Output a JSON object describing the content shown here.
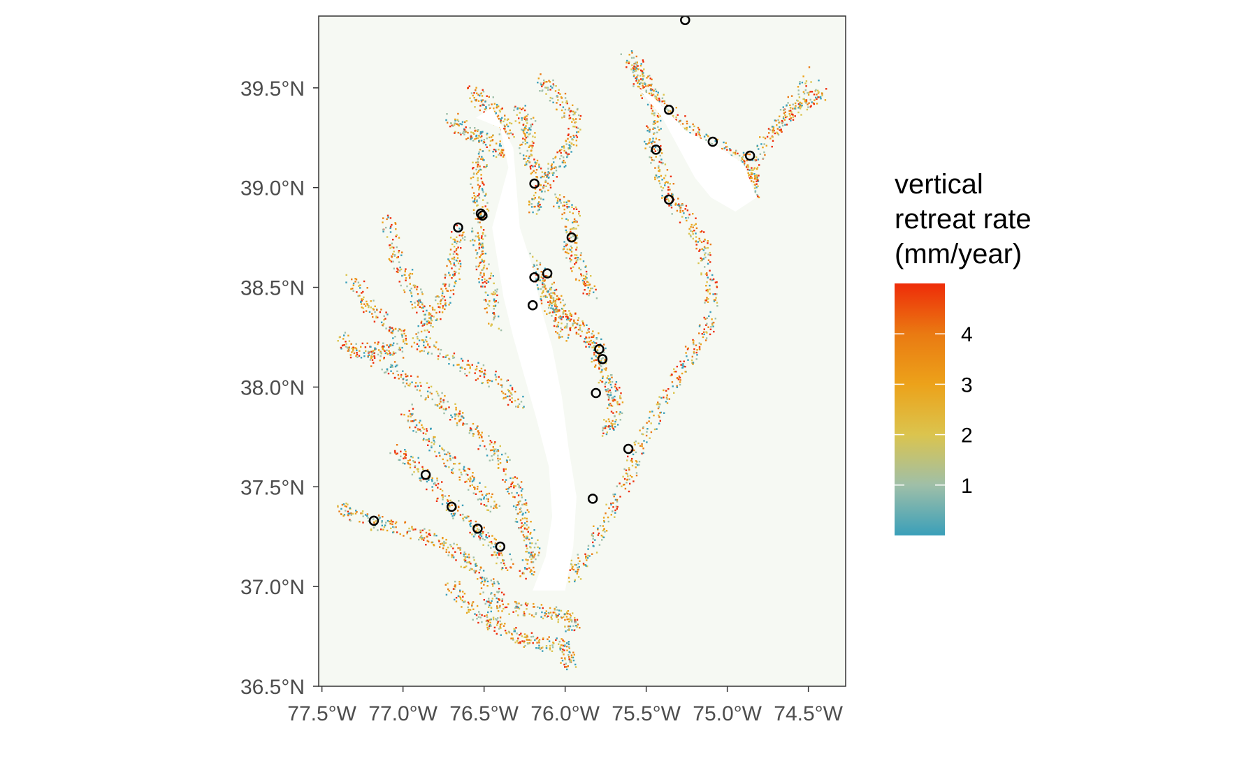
{
  "map": {
    "x_axis": {
      "tick_labels": [
        "77.5°W",
        "77.0°W",
        "76.5°W",
        "76.0°W",
        "75.5°W",
        "75.0°W",
        "74.5°W"
      ],
      "tick_values": [
        -77.5,
        -77.0,
        -76.5,
        -76.0,
        -75.5,
        -75.0,
        -74.5
      ],
      "range": [
        -77.52,
        -74.27
      ]
    },
    "y_axis": {
      "tick_labels": [
        "36.5°N",
        "37.0°N",
        "37.5°N",
        "38.0°N",
        "38.5°N",
        "39.0°N",
        "39.5°N"
      ],
      "tick_values": [
        36.5,
        37.0,
        37.5,
        38.0,
        38.5,
        39.0,
        39.5
      ],
      "range": [
        36.5,
        39.86
      ]
    },
    "panel_background": "#f6f9f3",
    "station_markers": [
      {
        "lon": -75.26,
        "lat": 39.84
      },
      {
        "lon": -75.36,
        "lat": 39.39
      },
      {
        "lon": -75.44,
        "lat": 39.19
      },
      {
        "lon": -75.09,
        "lat": 39.23
      },
      {
        "lon": -74.86,
        "lat": 39.16
      },
      {
        "lon": -75.36,
        "lat": 38.94
      },
      {
        "lon": -76.19,
        "lat": 39.02
      },
      {
        "lon": -76.52,
        "lat": 38.87
      },
      {
        "lon": -76.51,
        "lat": 38.86
      },
      {
        "lon": -76.66,
        "lat": 38.8
      },
      {
        "lon": -75.96,
        "lat": 38.75
      },
      {
        "lon": -76.11,
        "lat": 38.57
      },
      {
        "lon": -76.19,
        "lat": 38.55
      },
      {
        "lon": -76.2,
        "lat": 38.41
      },
      {
        "lon": -75.79,
        "lat": 38.19
      },
      {
        "lon": -75.77,
        "lat": 38.14
      },
      {
        "lon": -75.81,
        "lat": 37.97
      },
      {
        "lon": -75.61,
        "lat": 37.69
      },
      {
        "lon": -76.86,
        "lat": 37.56
      },
      {
        "lon": -75.83,
        "lat": 37.44
      },
      {
        "lon": -76.7,
        "lat": 37.4
      },
      {
        "lon": -76.54,
        "lat": 37.29
      },
      {
        "lon": -76.4,
        "lat": 37.2
      },
      {
        "lon": -77.18,
        "lat": 37.33
      }
    ],
    "marsh_segments": [
      [
        [
          -75.62,
          39.67
        ],
        [
          -75.55,
          39.6
        ],
        [
          -75.5,
          39.5
        ],
        [
          -75.42,
          39.4
        ],
        [
          -75.48,
          39.25
        ],
        [
          -75.42,
          39.1
        ],
        [
          -75.36,
          38.95
        ],
        [
          -75.25,
          38.85
        ],
        [
          -75.15,
          38.7
        ],
        [
          -75.1,
          38.5
        ],
        [
          -75.12,
          38.3
        ],
        [
          -75.25,
          38.15
        ],
        [
          -75.38,
          37.95
        ],
        [
          -75.52,
          37.75
        ],
        [
          -75.62,
          37.55
        ],
        [
          -75.75,
          37.35
        ],
        [
          -75.88,
          37.15
        ],
        [
          -75.97,
          37.05
        ]
      ],
      [
        [
          -75.56,
          39.55
        ],
        [
          -75.4,
          39.4
        ],
        [
          -75.25,
          39.3
        ],
        [
          -75.1,
          39.22
        ],
        [
          -74.9,
          39.15
        ],
        [
          -74.86,
          39.05
        ],
        [
          -74.85,
          38.95
        ]
      ],
      [
        [
          -74.9,
          39.0
        ],
        [
          -74.75,
          39.25
        ],
        [
          -74.62,
          39.4
        ],
        [
          -74.45,
          39.58
        ]
      ],
      [
        [
          -74.75,
          39.28
        ],
        [
          -74.55,
          39.42
        ],
        [
          -74.4,
          39.48
        ]
      ],
      [
        [
          -76.58,
          39.48
        ],
        [
          -76.48,
          39.42
        ],
        [
          -76.4,
          39.35
        ],
        [
          -76.36,
          39.25
        ]
      ],
      [
        [
          -76.15,
          39.55
        ],
        [
          -76.05,
          39.45
        ],
        [
          -75.95,
          39.35
        ],
        [
          -75.98,
          39.2
        ],
        [
          -76.08,
          39.1
        ],
        [
          -76.16,
          39.0
        ],
        [
          -76.2,
          38.9
        ]
      ],
      [
        [
          -76.52,
          39.2
        ],
        [
          -76.55,
          39.05
        ],
        [
          -76.52,
          38.9
        ],
        [
          -76.55,
          38.75
        ],
        [
          -76.52,
          38.62
        ],
        [
          -76.47,
          38.48
        ],
        [
          -76.44,
          38.32
        ]
      ],
      [
        [
          -76.66,
          38.8
        ],
        [
          -76.68,
          38.65
        ],
        [
          -76.72,
          38.5
        ],
        [
          -76.8,
          38.38
        ],
        [
          -76.9,
          38.25
        ]
      ],
      [
        [
          -77.1,
          38.85
        ],
        [
          -77.05,
          38.65
        ],
        [
          -76.95,
          38.5
        ],
        [
          -76.85,
          38.35
        ]
      ],
      [
        [
          -77.32,
          38.55
        ],
        [
          -77.2,
          38.4
        ],
        [
          -77.05,
          38.28
        ],
        [
          -76.85,
          38.2
        ],
        [
          -76.6,
          38.1
        ],
        [
          -76.4,
          38.02
        ],
        [
          -76.3,
          37.92
        ]
      ],
      [
        [
          -77.2,
          38.15
        ],
        [
          -77.0,
          38.05
        ],
        [
          -76.8,
          37.95
        ],
        [
          -76.65,
          37.85
        ],
        [
          -76.5,
          37.72
        ],
        [
          -76.38,
          37.62
        ]
      ],
      [
        [
          -77.0,
          37.9
        ],
        [
          -76.85,
          37.75
        ],
        [
          -76.7,
          37.62
        ],
        [
          -76.55,
          37.5
        ],
        [
          -76.42,
          37.38
        ]
      ],
      [
        [
          -77.05,
          37.7
        ],
        [
          -76.9,
          37.58
        ],
        [
          -76.75,
          37.45
        ],
        [
          -76.6,
          37.33
        ],
        [
          -76.45,
          37.22
        ],
        [
          -76.35,
          37.1
        ]
      ],
      [
        [
          -77.38,
          37.4
        ],
        [
          -77.22,
          37.33
        ],
        [
          -77.05,
          37.3
        ],
        [
          -76.85,
          37.25
        ],
        [
          -76.68,
          37.18
        ],
        [
          -76.55,
          37.08
        ],
        [
          -76.42,
          36.98
        ]
      ],
      [
        [
          -76.5,
          36.95
        ],
        [
          -76.35,
          36.9
        ],
        [
          -76.15,
          36.88
        ],
        [
          -76.0,
          36.85
        ],
        [
          -75.95,
          36.8
        ]
      ],
      [
        [
          -76.3,
          38.7
        ],
        [
          -76.2,
          38.6
        ],
        [
          -76.1,
          38.5
        ],
        [
          -76.05,
          38.38
        ],
        [
          -76.0,
          38.25
        ]
      ],
      [
        [
          -76.18,
          38.55
        ],
        [
          -76.1,
          38.42
        ],
        [
          -75.98,
          38.35
        ],
        [
          -75.88,
          38.28
        ],
        [
          -75.8,
          38.2
        ]
      ],
      [
        [
          -76.05,
          38.95
        ],
        [
          -75.95,
          38.85
        ],
        [
          -75.98,
          38.72
        ],
        [
          -75.92,
          38.6
        ],
        [
          -75.85,
          38.48
        ]
      ],
      [
        [
          -75.82,
          38.22
        ],
        [
          -75.78,
          38.1
        ],
        [
          -75.72,
          37.98
        ],
        [
          -75.68,
          37.88
        ],
        [
          -75.75,
          37.78
        ]
      ],
      [
        [
          -76.7,
          37.0
        ],
        [
          -76.6,
          36.9
        ],
        [
          -76.45,
          36.82
        ],
        [
          -76.3,
          36.75
        ],
        [
          -76.15,
          36.72
        ],
        [
          -76.0,
          36.7
        ],
        [
          -75.98,
          36.6
        ]
      ],
      [
        [
          -76.35,
          37.55
        ],
        [
          -76.28,
          37.42
        ],
        [
          -76.25,
          37.3
        ],
        [
          -76.2,
          37.18
        ],
        [
          -76.25,
          37.05
        ]
      ],
      [
        [
          -77.4,
          38.25
        ],
        [
          -77.3,
          38.18
        ],
        [
          -77.15,
          38.2
        ],
        [
          -77.0,
          38.18
        ]
      ],
      [
        [
          -76.7,
          39.35
        ],
        [
          -76.62,
          39.28
        ],
        [
          -76.5,
          39.25
        ],
        [
          -76.4,
          39.18
        ]
      ],
      [
        [
          -76.3,
          39.4
        ],
        [
          -76.22,
          39.3
        ],
        [
          -76.25,
          39.18
        ],
        [
          -76.18,
          39.08
        ]
      ]
    ],
    "water_bodies": [
      [
        [
          -76.55,
          39.35
        ],
        [
          -76.4,
          39.3
        ],
        [
          -76.35,
          39.1
        ],
        [
          -76.4,
          38.95
        ],
        [
          -76.45,
          38.8
        ],
        [
          -76.42,
          38.65
        ],
        [
          -76.38,
          38.45
        ],
        [
          -76.32,
          38.25
        ],
        [
          -76.25,
          38.05
        ],
        [
          -76.18,
          37.85
        ],
        [
          -76.1,
          37.6
        ],
        [
          -76.08,
          37.35
        ],
        [
          -76.12,
          37.15
        ],
        [
          -76.2,
          36.98
        ],
        [
          -76.0,
          36.98
        ],
        [
          -75.95,
          37.2
        ],
        [
          -75.93,
          37.45
        ],
        [
          -75.98,
          37.7
        ],
        [
          -76.02,
          37.95
        ],
        [
          -76.08,
          38.2
        ],
        [
          -76.15,
          38.4
        ],
        [
          -76.2,
          38.6
        ],
        [
          -76.28,
          38.8
        ],
        [
          -76.3,
          39.0
        ],
        [
          -76.32,
          39.2
        ],
        [
          -76.45,
          39.4
        ]
      ],
      [
        [
          -75.55,
          39.5
        ],
        [
          -75.4,
          39.35
        ],
        [
          -75.3,
          39.2
        ],
        [
          -75.2,
          39.05
        ],
        [
          -75.1,
          38.95
        ],
        [
          -74.95,
          38.88
        ],
        [
          -74.82,
          38.95
        ],
        [
          -74.9,
          39.12
        ],
        [
          -75.05,
          39.2
        ],
        [
          -75.25,
          39.28
        ],
        [
          -75.45,
          39.45
        ]
      ]
    ]
  },
  "legend": {
    "title_lines": [
      "vertical",
      "retreat rate",
      "(mm/year)"
    ],
    "tick_labels": [
      "1",
      "2",
      "3",
      "4"
    ],
    "tick_values": [
      1,
      2,
      3,
      4
    ],
    "range": [
      0,
      5
    ],
    "colors": [
      "#3a9fb9",
      "#9fbfa8",
      "#dbc44e",
      "#eca21a",
      "#ea7a12",
      "#ee2c09"
    ]
  }
}
